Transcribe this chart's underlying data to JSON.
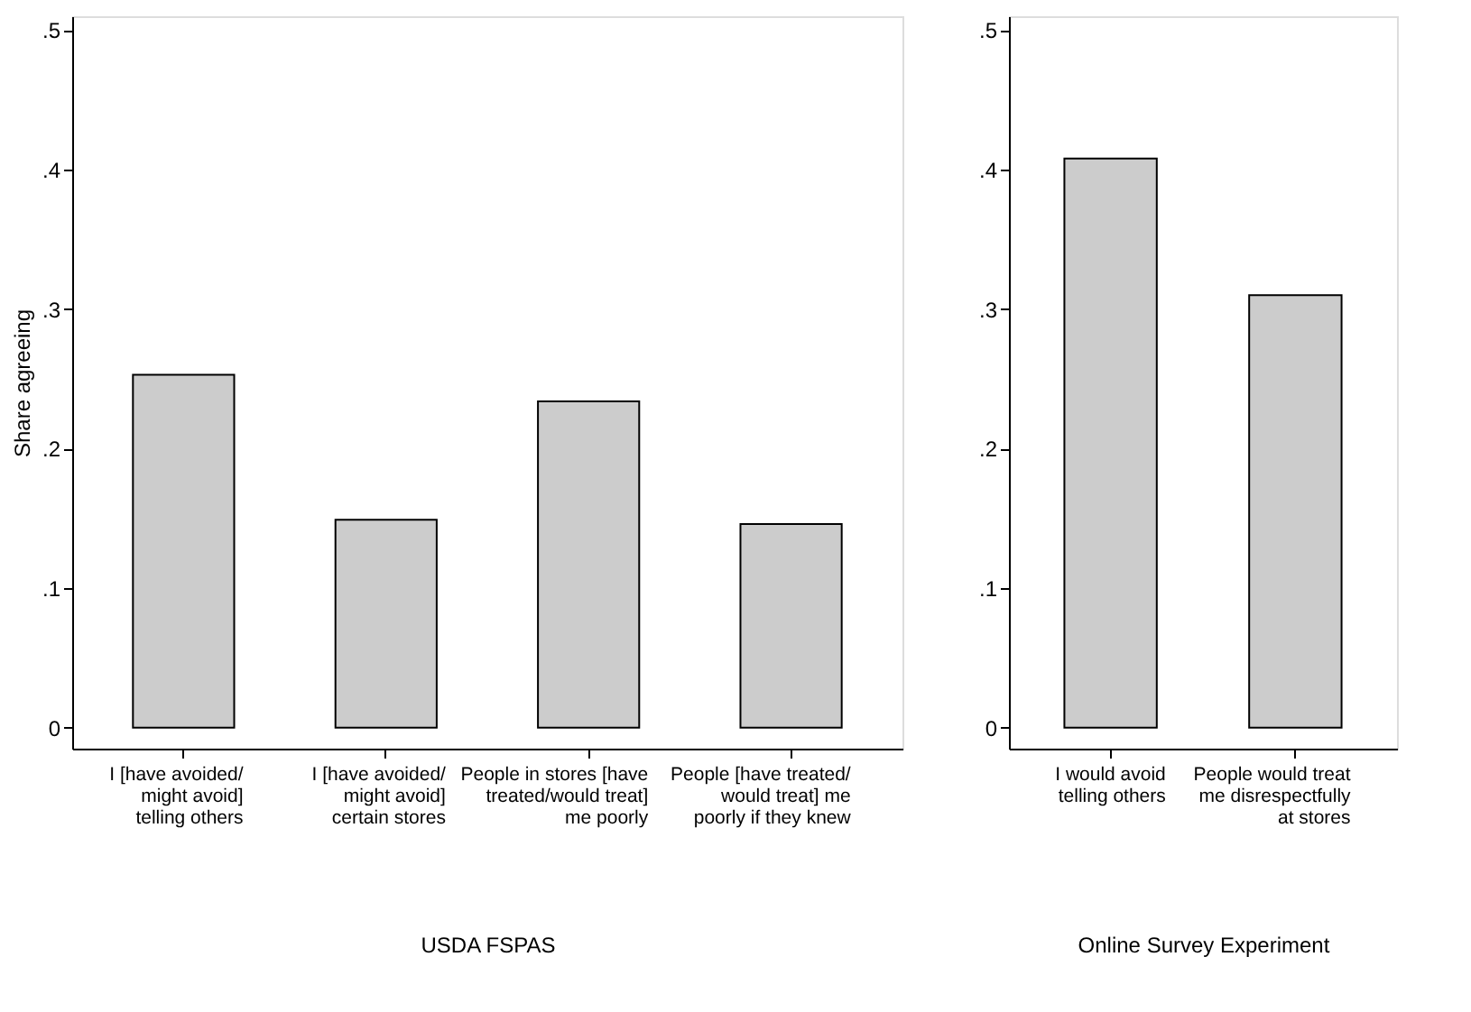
{
  "chart_data": [
    {
      "type": "bar",
      "title": "USDA FSPAS",
      "ylabel": "Share agreeing",
      "categories": [
        "I [have avoided/\nmight avoid]\ntelling others",
        "I [have avoided/\nmight avoid]\ncertain stores",
        "People in stores [have\ntreated/would treat]\nme poorly",
        "People [have treated/\nwould treat] me\npoorly if they knew"
      ],
      "values": [
        0.253,
        0.149,
        0.234,
        0.146
      ],
      "color": "#cccccc",
      "ylim": [
        -0.015,
        0.51
      ],
      "yticks": [
        0,
        {
          "value": 0.1,
          "label": ".1"
        },
        {
          "value": 0.2,
          "label": ".2"
        },
        {
          "value": 0.3,
          "label": ".3"
        },
        {
          "value": 0.4,
          "label": ".4"
        },
        {
          "value": 0.5,
          "label": ".5"
        }
      ],
      "grid": false
    },
    {
      "type": "bar",
      "title": "Online Survey Experiment",
      "categories": [
        "I would avoid\ntelling others",
        "People would treat\nme disrespectfully\nat stores"
      ],
      "values": [
        0.408,
        0.31
      ],
      "color": "#cccccc",
      "ylim": [
        -0.015,
        0.51
      ],
      "yticks": [
        0,
        {
          "value": 0.1,
          "label": ".1"
        },
        {
          "value": 0.2,
          "label": ".2"
        },
        {
          "value": 0.3,
          "label": ".3"
        },
        {
          "value": 0.4,
          "label": ".4"
        },
        {
          "value": 0.5,
          "label": ".5"
        }
      ],
      "grid": false
    }
  ]
}
